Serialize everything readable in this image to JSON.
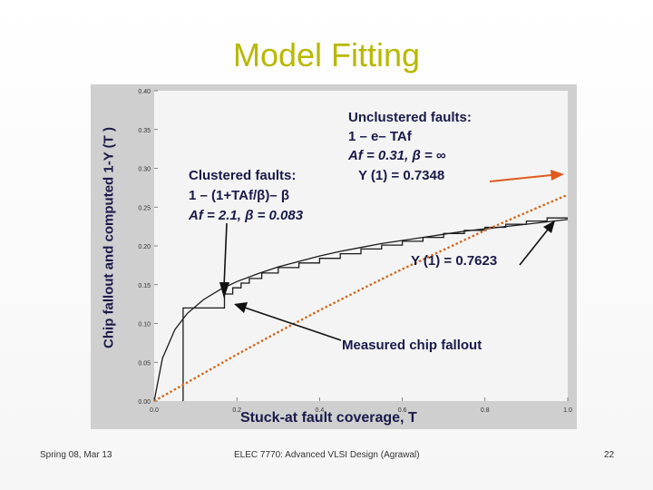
{
  "slide": {
    "title": "Model Fitting",
    "footer_left": "Spring 08, Mar 13",
    "footer_center": "ELEC 7770: Advanced VLSI Design (Agrawal)",
    "page_number": "22"
  },
  "chart_data": {
    "type": "line",
    "ylabel": "Chip fallout and computed 1-Y (T )",
    "xlabel": "Stuck-at fault coverage, T",
    "xlim": [
      0,
      1
    ],
    "ylim": [
      0,
      0.4
    ],
    "x_ticks": [
      "0.0",
      "0.2",
      "0.4",
      "0.6",
      "0.8",
      "1.0"
    ],
    "y_ticks": [
      "0.00",
      "0.05",
      "0.10",
      "0.15",
      "0.20",
      "0.25",
      "0.30",
      "0.35",
      "0.40"
    ],
    "series": [
      {
        "name": "Measured chip fallout",
        "style": "step",
        "color": "#1a1a1a",
        "x": [
          0.07,
          0.07,
          0.17,
          0.17,
          0.19,
          0.19,
          0.21,
          0.21,
          0.23,
          0.23,
          0.26,
          0.26,
          0.3,
          0.3,
          0.35,
          0.35,
          0.4,
          0.4,
          0.45,
          0.45,
          0.5,
          0.5,
          0.55,
          0.55,
          0.6,
          0.6,
          0.65,
          0.65,
          0.7,
          0.7,
          0.75,
          0.75,
          0.8,
          0.8,
          0.85,
          0.85,
          0.9,
          0.9,
          0.95,
          0.95,
          1.0
        ],
        "y": [
          0.0,
          0.12,
          0.12,
          0.138,
          0.138,
          0.146,
          0.146,
          0.152,
          0.152,
          0.158,
          0.158,
          0.165,
          0.165,
          0.172,
          0.172,
          0.178,
          0.178,
          0.184,
          0.184,
          0.19,
          0.19,
          0.196,
          0.196,
          0.201,
          0.201,
          0.206,
          0.206,
          0.211,
          0.211,
          0.216,
          0.216,
          0.22,
          0.22,
          0.224,
          0.224,
          0.228,
          0.228,
          0.232,
          0.232,
          0.236,
          0.236
        ]
      },
      {
        "name": "Clustered faults: 1 – (1+TAf/β)– β",
        "style": "smooth",
        "color": "#1a1a1a",
        "x": [
          0.0,
          0.02,
          0.05,
          0.08,
          0.12,
          0.16,
          0.2,
          0.25,
          0.3,
          0.35,
          0.4,
          0.45,
          0.5,
          0.55,
          0.6,
          0.65,
          0.7,
          0.75,
          0.8,
          0.85,
          0.9,
          0.95,
          1.0
        ],
        "y": [
          0.0,
          0.055,
          0.092,
          0.113,
          0.131,
          0.144,
          0.154,
          0.164,
          0.173,
          0.18,
          0.187,
          0.193,
          0.198,
          0.203,
          0.207,
          0.211,
          0.215,
          0.219,
          0.222,
          0.225,
          0.228,
          0.231,
          0.234
        ]
      },
      {
        "name": "Unclustered faults: 1 – e– TAf",
        "style": "dotted",
        "color": "#d2691e",
        "x": [
          0.0,
          0.1,
          0.2,
          0.3,
          0.4,
          0.5,
          0.6,
          0.7,
          0.8,
          0.9,
          1.0
        ],
        "y": [
          0.0,
          0.03,
          0.06,
          0.089,
          0.117,
          0.144,
          0.17,
          0.195,
          0.22,
          0.243,
          0.266
        ]
      }
    ],
    "annotations": {
      "clustered": [
        "Clustered faults:",
        "1 – (1+TAf/β)– β",
        "Af = 2.1, β = 0.083"
      ],
      "unclustered": [
        "Unclustered faults:",
        "1 – e– TAf",
        "Af = 0.31, β = ∞",
        "Y (1) = 0.7348"
      ],
      "clustered_yield": "Y (1) = 0.7623",
      "measured": "Measured chip fallout"
    }
  }
}
